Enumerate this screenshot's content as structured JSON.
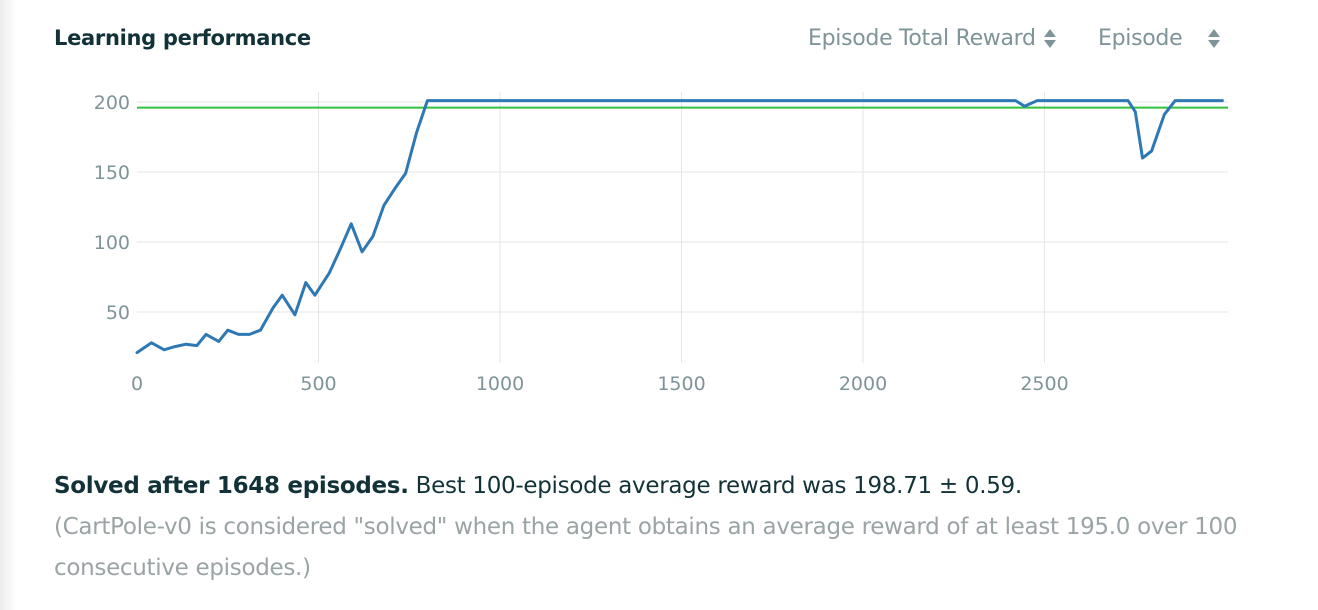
{
  "header": {
    "title": "Learning performance",
    "y_selector_label": "Episode Total Reward",
    "x_selector_label": "Episode"
  },
  "colors": {
    "series_line": "#2e78b4",
    "threshold_line": "#33c13c",
    "grid": "#e6e6e6",
    "text_dark": "#123238",
    "text_muted": "#7f9499"
  },
  "icons": {
    "y_selector": "sort-updown-icon",
    "x_selector": "sort-updown-icon"
  },
  "chart_data": {
    "type": "line",
    "title": "Learning performance",
    "xlabel": "",
    "ylabel": "",
    "xlim": [
      0,
      3000
    ],
    "ylim": [
      13,
      205
    ],
    "x_ticks": [
      0,
      500,
      1000,
      1500,
      2000,
      2500
    ],
    "y_ticks": [
      50,
      100,
      150,
      200
    ],
    "grid": true,
    "legend": "none",
    "series": [
      {
        "x": [
          0,
          40,
          75,
          100,
          135,
          165,
          190,
          225,
          250,
          280,
          310,
          340,
          375,
          400,
          435,
          465,
          490,
          530,
          560,
          590,
          620,
          650,
          680,
          710,
          740,
          770,
          800,
          850,
          1000,
          1500,
          2000,
          2420,
          2445,
          2480,
          2500,
          2700,
          2730,
          2750,
          2770,
          2795,
          2830,
          2860,
          2900,
          2990
        ],
        "y": [
          21,
          28,
          23,
          25,
          27,
          26,
          34,
          29,
          37,
          34,
          34,
          37,
          53,
          62,
          48,
          71,
          62,
          78,
          95,
          113,
          93,
          104,
          126,
          138,
          149,
          178,
          201,
          201,
          201,
          201,
          201,
          201,
          197,
          201,
          201,
          201,
          201,
          193,
          160,
          165,
          191,
          201,
          201,
          201
        ]
      }
    ],
    "threshold": 196
  },
  "summary": {
    "solved_text": "Solved after 1648 episodes.",
    "best_text": " Best 100-episode average reward was 198.71 ± 0.59.",
    "note_text": "(CartPole-v0 is considered \"solved\" when the agent obtains an average reward of at least 195.0 over 100 consecutive episodes.)"
  }
}
